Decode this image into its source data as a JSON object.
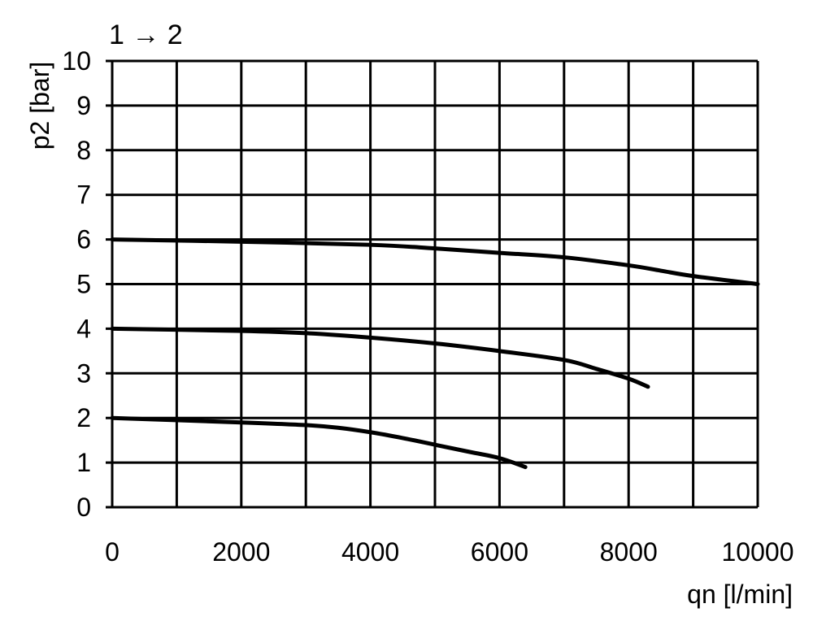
{
  "chart_data": {
    "type": "line",
    "title": "1 → 2",
    "xlabel": "qn [l/min]",
    "ylabel": "p2 [bar]",
    "xlim": [
      0,
      10000
    ],
    "ylim": [
      0,
      10
    ],
    "xticks": [
      0,
      2000,
      4000,
      6000,
      8000,
      10000
    ],
    "yticks": [
      0,
      1,
      2,
      3,
      4,
      5,
      6,
      7,
      8,
      9,
      10
    ],
    "grid": true,
    "grid_x_step": 1000,
    "grid_y_step": 1,
    "line_color": "#000000",
    "series": [
      {
        "x": [
          0,
          2000,
          4000,
          5000,
          6000,
          7000,
          8000,
          8500,
          9000,
          10000
        ],
        "y": [
          6.0,
          5.95,
          5.88,
          5.8,
          5.7,
          5.6,
          5.42,
          5.3,
          5.18,
          5.0
        ]
      },
      {
        "x": [
          0,
          2000,
          3000,
          4000,
          5000,
          6000,
          7000,
          7500,
          8000,
          8300
        ],
        "y": [
          4.0,
          3.95,
          3.9,
          3.8,
          3.67,
          3.5,
          3.3,
          3.1,
          2.88,
          2.7
        ]
      },
      {
        "x": [
          0,
          2000,
          3000,
          3500,
          4000,
          4500,
          5000,
          5500,
          6000,
          6400
        ],
        "y": [
          2.0,
          1.9,
          1.84,
          1.78,
          1.68,
          1.55,
          1.4,
          1.25,
          1.1,
          0.9
        ]
      }
    ]
  }
}
